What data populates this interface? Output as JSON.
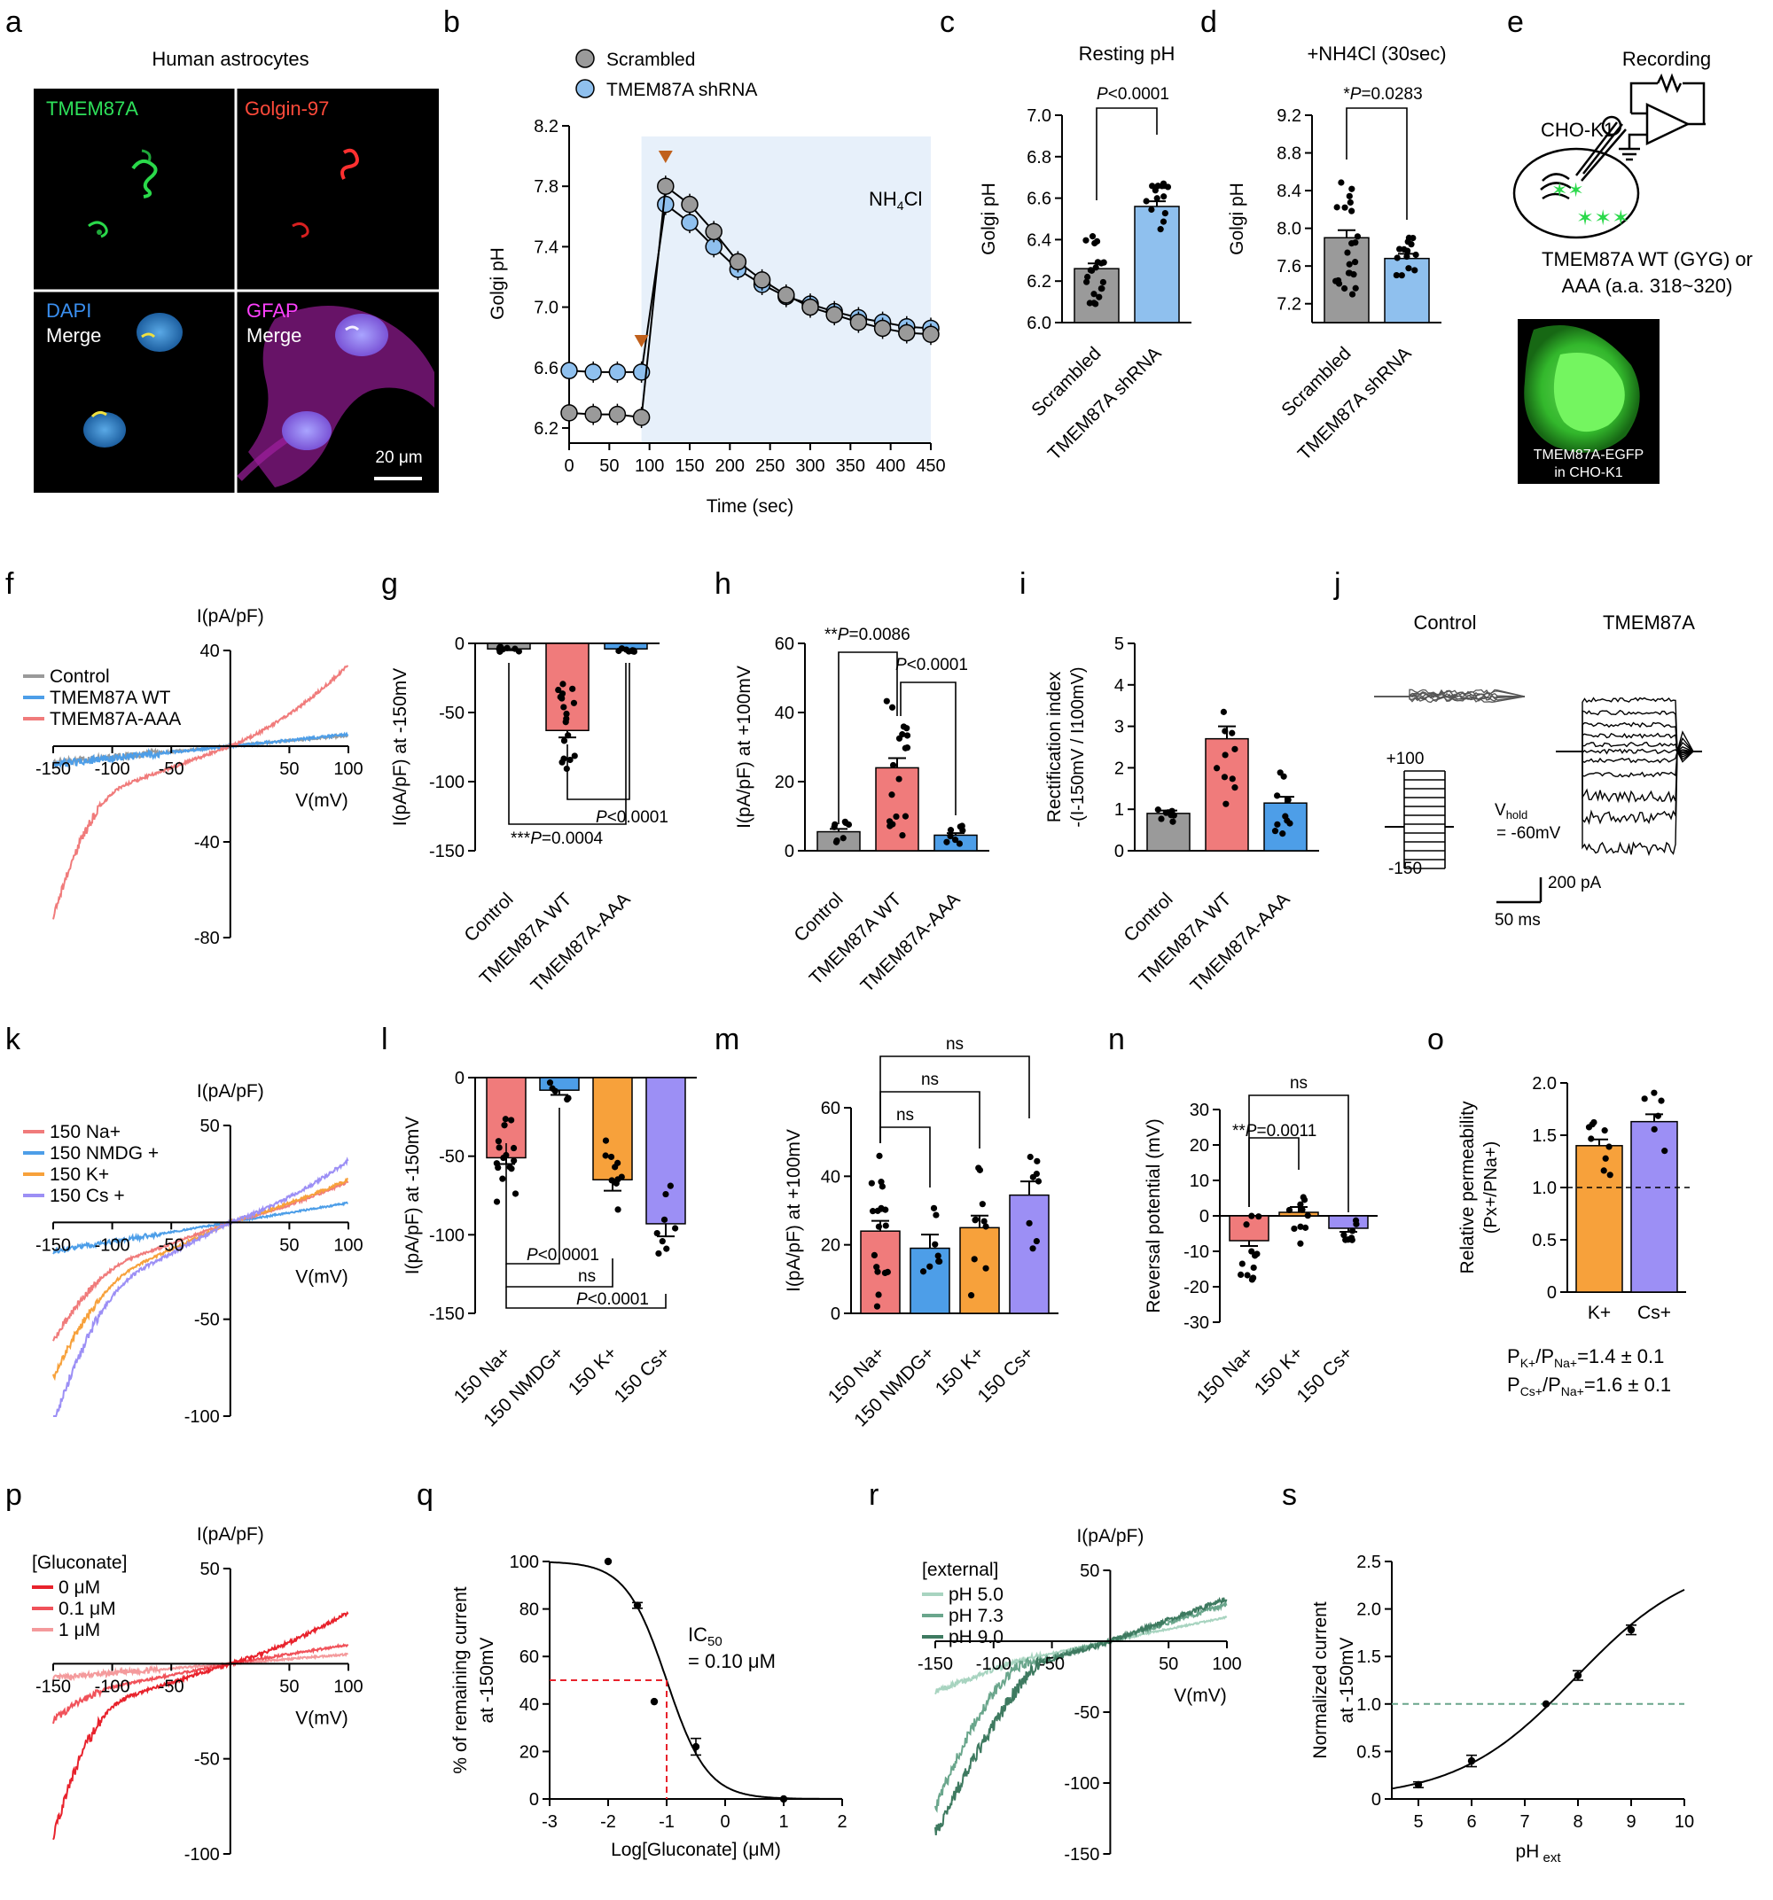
{
  "colors": {
    "control": "#9a9a9a",
    "wt": "#f07b7b",
    "aaa": "#4d9ee8",
    "na": "#f07b7b",
    "nmdg": "#4d9ee8",
    "k": "#f7a13b",
    "cs": "#9c8ff5",
    "scr": "#9a9a9a",
    "shrna": "#8fc0ee",
    "shade": "#e7f0fa",
    "arrow": "#c0601c",
    "gluc0": "#e8222c",
    "gluc01": "#f0525a",
    "gluc1": "#f49a9c",
    "ph5": "#a8d4c0",
    "ph73": "#6aa68c",
    "ph9": "#3e7a60"
  },
  "panel_a": {
    "label": "a",
    "title": "Human astrocytes",
    "tmem": "TMEM87A",
    "golgin": "Golgin-97",
    "dapi": "DAPI",
    "merge": "Merge",
    "gfap": "GFAP",
    "scalebar": "20 μm"
  },
  "panel_e": {
    "label": "e",
    "recording": "Recording",
    "cell": "CHO-K1",
    "construct1": "TMEM87A WT (GYG) or",
    "construct2": "AAA (a.a. 318~320)",
    "img_line1": "TMEM87A-EGFP",
    "img_line2": "in CHO-K1"
  },
  "panel_j": {
    "label": "j",
    "control": "Control",
    "tmem": "TMEM87A",
    "v_top": "+100",
    "v_bot": "-150",
    "vhold": "V",
    "vhold_sub": "hold",
    "vhold_val": "= -60mV",
    "scale_i": "200 pA",
    "scale_t": "50 ms"
  },
  "panel_o_text": {
    "r1a": "P",
    "r1b": "K+",
    "r1c": "/P",
    "r1d": "Na+",
    "r1e": "=1.4 ± 0.1",
    "r2a": "P",
    "r2b": "Cs+",
    "r2c": "/P",
    "r2d": "Na+",
    "r2e": "=1.6 ± 0.1"
  },
  "chart_data": [
    {
      "panel": "b",
      "type": "line",
      "xlabel": "Time (sec)",
      "ylabel": "Golgi pH",
      "xlim": [
        0,
        450
      ],
      "ylim": [
        6.1,
        8.2
      ],
      "xticks": [
        "0",
        "50",
        "100",
        "150",
        "200",
        "250",
        "300",
        "350",
        "400",
        "450"
      ],
      "yticks": [
        "6.2",
        "6.6",
        "7.0",
        "7.4",
        "7.8",
        "8.2"
      ],
      "annotation": "NH4Cl",
      "legend": [
        "Scrambled",
        "TMEM87A shRNA"
      ],
      "x": [
        0,
        30,
        60,
        90,
        120,
        150,
        180,
        210,
        240,
        270,
        300,
        330,
        360,
        390,
        420,
        450
      ],
      "series": [
        {
          "name": "Scrambled",
          "values": [
            6.3,
            6.29,
            6.29,
            6.27,
            7.8,
            7.68,
            7.5,
            7.3,
            7.18,
            7.08,
            7.0,
            6.95,
            6.9,
            6.86,
            6.83,
            6.82
          ]
        },
        {
          "name": "TMEM87A shRNA",
          "values": [
            6.58,
            6.57,
            6.57,
            6.57,
            7.68,
            7.56,
            7.4,
            7.25,
            7.15,
            7.07,
            7.02,
            6.97,
            6.93,
            6.9,
            6.87,
            6.86
          ]
        }
      ]
    },
    {
      "panel": "c",
      "type": "bar",
      "title": "Resting pH",
      "ylabel": "Golgi pH",
      "ylim": [
        6.0,
        7.0
      ],
      "yticks": [
        "6.0",
        "6.2",
        "6.4",
        "6.6",
        "6.8",
        "7.0"
      ],
      "categories": [
        "Scrambled",
        "TMEM87A shRNA"
      ],
      "values": [
        6.26,
        6.56
      ],
      "stat": "P<0.0001"
    },
    {
      "panel": "d",
      "type": "bar",
      "title": "+NH4Cl (30sec)",
      "ylabel": "Golgi pH",
      "ylim": [
        7.0,
        9.2
      ],
      "yticks": [
        "7.2",
        "7.6",
        "8.0",
        "8.4",
        "8.8",
        "9.2"
      ],
      "categories": [
        "Scrambled",
        "TMEM87A shRNA"
      ],
      "values": [
        7.9,
        7.68
      ],
      "stat": "*P=0.0283"
    },
    {
      "panel": "f",
      "type": "line",
      "xlabel": "V(mV)",
      "ylabel": "I(pA/pF)",
      "xlim": [
        -150,
        100
      ],
      "ylim": [
        -80,
        40
      ],
      "xticks": [
        "-150",
        "-100",
        "-50",
        "50",
        "100"
      ],
      "yticks": [
        "40",
        "-40",
        "-80"
      ],
      "legend": [
        "Control",
        "TMEM87A WT",
        "TMEM87A-AAA"
      ]
    },
    {
      "panel": "g",
      "type": "bar",
      "ylabel": "I(pA/pF) at -150mV",
      "ylim": [
        -150,
        0
      ],
      "yticks": [
        "0",
        "-50",
        "-100",
        "-150"
      ],
      "categories": [
        "Control",
        "TMEM87A WT",
        "TMEM87A-AAA"
      ],
      "values": [
        -4,
        -63,
        -4
      ],
      "stats": [
        "***P=0.0004",
        "P<0.0001"
      ]
    },
    {
      "panel": "h",
      "type": "bar",
      "ylabel": "I(pA/pF) at +100mV",
      "ylim": [
        0,
        60
      ],
      "yticks": [
        "0",
        "20",
        "40",
        "60"
      ],
      "categories": [
        "Control",
        "TMEM87A WT",
        "TMEM87A-AAA"
      ],
      "values": [
        5.5,
        24,
        4.5
      ],
      "stats": [
        "**P=0.0086",
        "P<0.0001"
      ]
    },
    {
      "panel": "i",
      "type": "bar",
      "ylabel": "Rectification index",
      "ylabel2": "-(I-150mV / I100mV)",
      "ylim": [
        0,
        5
      ],
      "yticks": [
        "0",
        "1",
        "2",
        "3",
        "4",
        "5"
      ],
      "categories": [
        "Control",
        "TMEM87A WT",
        "TMEM87A-AAA"
      ],
      "values": [
        0.9,
        2.7,
        1.15
      ]
    },
    {
      "panel": "k",
      "type": "line",
      "xlabel": "V(mV)",
      "ylabel": "I(pA/pF)",
      "xlim": [
        -150,
        100
      ],
      "ylim": [
        -100,
        50
      ],
      "xticks": [
        "-150",
        "-100",
        "-50",
        "50",
        "100"
      ],
      "yticks": [
        "50",
        "-50",
        "-100"
      ],
      "legend": [
        "150 Na+",
        "150 NMDG +",
        "150 K+",
        "150 Cs +"
      ]
    },
    {
      "panel": "l",
      "type": "bar",
      "ylabel": "I(pA/pF) at -150mV",
      "ylim": [
        -150,
        0
      ],
      "yticks": [
        "0",
        "-50",
        "-100",
        "-150"
      ],
      "categories": [
        "150 Na+",
        "150 NMDG+",
        "150 K+",
        "150 Cs+"
      ],
      "values": [
        -51,
        -8,
        -65,
        -93
      ],
      "stats": [
        "P<0.0001",
        "ns",
        "P<0.0001"
      ]
    },
    {
      "panel": "m",
      "type": "bar",
      "ylabel": "I(pA/pF) at +100mV",
      "ylim": [
        0,
        60
      ],
      "yticks": [
        "0",
        "20",
        "40",
        "60"
      ],
      "categories": [
        "150 Na+",
        "150 NMDG+",
        "150 K+",
        "150 Cs+"
      ],
      "values": [
        24,
        19,
        25,
        34.5
      ],
      "stats": [
        "ns",
        "ns",
        "ns"
      ]
    },
    {
      "panel": "n",
      "type": "bar",
      "ylabel": "Reversal potential (mV)",
      "ylim": [
        -30,
        30
      ],
      "yticks": [
        "30",
        "20",
        "10",
        "0",
        "-10",
        "-20",
        "-30"
      ],
      "categories": [
        "150 Na+",
        "150 K+",
        "150 Cs+"
      ],
      "values": [
        -7,
        1,
        -3.5
      ],
      "stats": [
        "**P=0.0011",
        "ns"
      ]
    },
    {
      "panel": "o",
      "type": "bar",
      "ylabel": "Relative permeability",
      "ylabel2": "(Px+/PNa+)",
      "ylim": [
        0,
        2.0
      ],
      "yticks": [
        "0",
        "0.5",
        "1.0",
        "1.5",
        "2.0"
      ],
      "categories": [
        "K+",
        "Cs+"
      ],
      "values": [
        1.4,
        1.63
      ]
    },
    {
      "panel": "p",
      "type": "line",
      "xlabel": "V(mV)",
      "ylabel": "I(pA/pF)",
      "xlim": [
        -150,
        100
      ],
      "ylim": [
        -100,
        50
      ],
      "xticks": [
        "-150",
        "-100",
        "-50",
        "50",
        "100"
      ],
      "yticks": [
        "50",
        "-50",
        "-100"
      ],
      "legend_title": "[Gluconate]",
      "legend": [
        "0 μM",
        "0.1 μM",
        "1 μM"
      ]
    },
    {
      "panel": "q",
      "type": "scatter",
      "xlabel": "Log[Gluconate] (μM)",
      "ylabel": "% of remaining current",
      "ylabel2": "at -150mV",
      "xlim": [
        -3,
        2
      ],
      "ylim": [
        0,
        100
      ],
      "xticks": [
        "-3",
        "-2",
        "-1",
        "0",
        "1",
        "2"
      ],
      "yticks": [
        "0",
        "20",
        "40",
        "60",
        "80",
        "100"
      ],
      "ic50_label": "IC",
      "ic50_sub": "50",
      "ic50_value": "= 0.10 μM",
      "x": [
        -2,
        -1.5,
        -1,
        -0.5,
        1
      ],
      "values": [
        100,
        81.5,
        41,
        22,
        0
      ]
    },
    {
      "panel": "r",
      "type": "line",
      "xlabel": "V(mV)",
      "ylabel": "I(pA/pF)",
      "xlim": [
        -150,
        100
      ],
      "ylim": [
        -150,
        50
      ],
      "xticks": [
        "-150",
        "-100",
        "-50",
        "50",
        "100"
      ],
      "yticks": [
        "50",
        "-50",
        "-100",
        "-150"
      ],
      "legend_title": "[external]",
      "legend": [
        "pH 5.0",
        "pH 7.3",
        "pH 9.0"
      ]
    },
    {
      "panel": "s",
      "type": "scatter",
      "xlabel": "pH",
      "xlabel_sub": "ext",
      "ylabel": "Normalized current",
      "ylabel2": "at -150mV",
      "xlim": [
        4.5,
        10
      ],
      "ylim": [
        0,
        2.5
      ],
      "xticks": [
        "5",
        "6",
        "7",
        "8",
        "9",
        "10"
      ],
      "yticks": [
        "0",
        "0.5",
        "1.0",
        "1.5",
        "2.0",
        "2.5"
      ],
      "x": [
        5,
        6,
        7.4,
        8,
        9
      ],
      "values": [
        0.15,
        0.4,
        1.0,
        1.3,
        1.78
      ]
    }
  ]
}
